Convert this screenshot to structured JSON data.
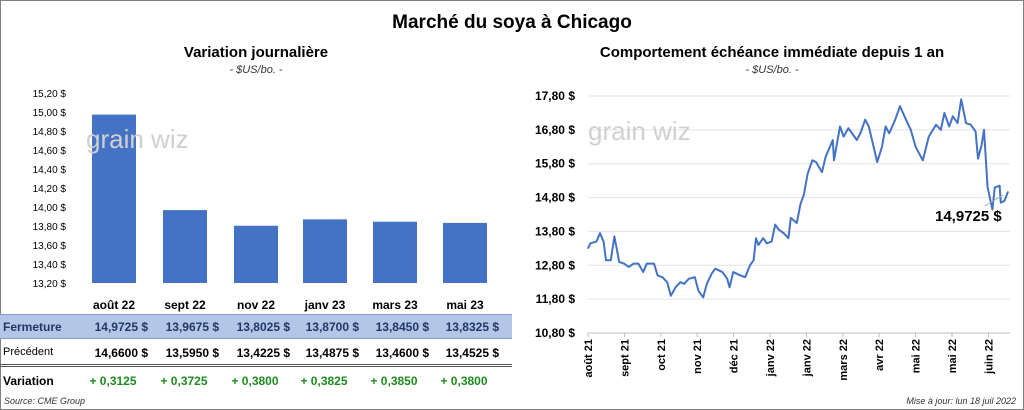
{
  "title": "Marché du soya à Chicago",
  "left": {
    "title": "Variation journalière",
    "subtitle": "- $US/bo. -",
    "table": {
      "columns": [
        "août 22",
        "sept 22",
        "nov 22",
        "janv 23",
        "mars 23",
        "mai 23"
      ],
      "rows": [
        {
          "label": "Fermeture",
          "values": [
            "14,9725  $",
            "13,9675  $",
            "13,8025  $",
            "13,8700  $",
            "13,8450  $",
            "13,8325  $"
          ]
        },
        {
          "label": "Précédent",
          "values": [
            "14,6600  $",
            "13,5950  $",
            "13,4225  $",
            "13,4875  $",
            "13,4600  $",
            "13,4525  $"
          ]
        },
        {
          "label": "Variation",
          "values": [
            "+ 0,3125",
            "+ 0,3725",
            "+ 0,3800",
            "+ 0,3825",
            "+ 0,3850",
            "+ 0,3800"
          ]
        }
      ]
    },
    "source": "Source: CME Group"
  },
  "right": {
    "title": "Comportement  échéance immédiate depuis 1 an",
    "subtitle": "- $US/bo. -",
    "last_label": "14,9725 $",
    "updated": "Mise à jour: lun 18 juil 2022"
  },
  "watermark": "grainwiz",
  "colors": {
    "bar": "#4472c4",
    "line": "#4472c4",
    "header_row": "#b4c6e7",
    "positive": "#1e8c1e"
  },
  "chart_data": [
    {
      "type": "bar",
      "categories": [
        "août 22",
        "sept 22",
        "nov 22",
        "janv 23",
        "mars 23",
        "mai 23"
      ],
      "values": [
        14.9725,
        13.9675,
        13.8025,
        13.87,
        13.845,
        13.8325
      ],
      "ylim": [
        13.2,
        15.2
      ],
      "yticks": [
        "13,20 $",
        "13,40 $",
        "13,60 $",
        "13,80 $",
        "14,00 $",
        "14,20 $",
        "14,40 $",
        "14,60 $",
        "14,80 $",
        "15,00 $",
        "15,20 $"
      ],
      "grid": false
    },
    {
      "type": "line",
      "ylim": [
        10.8,
        17.8
      ],
      "yticks": [
        "10,80 $",
        "11,80 $",
        "12,80 $",
        "13,80 $",
        "14,80 $",
        "15,80 $",
        "16,80 $",
        "17,80 $"
      ],
      "xticks": [
        "août 21",
        "sept 21",
        "oct 21",
        "nov 21",
        "déc 21",
        "janv 22",
        "janv 22",
        "mars 22",
        "avr 22",
        "mai 22",
        "mai 22",
        "juin 22"
      ],
      "grid": true,
      "points": [
        [
          "2021-08-02",
          13.3
        ],
        [
          "2021-08-04",
          13.45
        ],
        [
          "2021-08-09",
          13.5
        ],
        [
          "2021-08-12",
          13.75
        ],
        [
          "2021-08-15",
          13.5
        ],
        [
          "2021-08-17",
          12.95
        ],
        [
          "2021-08-21",
          12.95
        ],
        [
          "2021-08-24",
          13.65
        ],
        [
          "2021-08-28",
          12.9
        ],
        [
          "2021-09-01",
          12.85
        ],
        [
          "2021-09-05",
          12.75
        ],
        [
          "2021-09-09",
          12.85
        ],
        [
          "2021-09-13",
          12.85
        ],
        [
          "2021-09-17",
          12.6
        ],
        [
          "2021-09-20",
          12.85
        ],
        [
          "2021-09-26",
          12.85
        ],
        [
          "2021-09-29",
          12.5
        ],
        [
          "2021-10-03",
          12.45
        ],
        [
          "2021-10-07",
          12.3
        ],
        [
          "2021-10-10",
          11.9
        ],
        [
          "2021-10-14",
          12.15
        ],
        [
          "2021-10-18",
          12.3
        ],
        [
          "2021-10-21",
          12.25
        ],
        [
          "2021-10-25",
          12.4
        ],
        [
          "2021-10-30",
          12.45
        ],
        [
          "2021-11-02",
          12.05
        ],
        [
          "2021-11-06",
          11.85
        ],
        [
          "2021-11-09",
          12.25
        ],
        [
          "2021-11-13",
          12.55
        ],
        [
          "2021-11-16",
          12.7
        ],
        [
          "2021-11-22",
          12.6
        ],
        [
          "2021-11-26",
          12.4
        ],
        [
          "2021-11-28",
          12.15
        ],
        [
          "2021-12-01",
          12.6
        ],
        [
          "2021-12-07",
          12.5
        ],
        [
          "2021-12-11",
          12.45
        ],
        [
          "2021-12-15",
          12.8
        ],
        [
          "2021-12-18",
          12.95
        ],
        [
          "2021-12-20",
          13.6
        ],
        [
          "2021-12-22",
          13.4
        ],
        [
          "2021-12-26",
          13.6
        ],
        [
          "2021-12-29",
          13.45
        ],
        [
          "2022-01-02",
          13.5
        ],
        [
          "2022-01-05",
          14.0
        ],
        [
          "2022-01-08",
          13.85
        ],
        [
          "2022-01-12",
          13.75
        ],
        [
          "2022-01-16",
          13.6
        ],
        [
          "2022-01-18",
          14.2
        ],
        [
          "2022-01-23",
          14.05
        ],
        [
          "2022-01-26",
          14.6
        ],
        [
          "2022-01-29",
          14.9
        ],
        [
          "2022-02-01",
          15.5
        ],
        [
          "2022-02-05",
          15.9
        ],
        [
          "2022-02-08",
          15.85
        ],
        [
          "2022-02-13",
          15.55
        ],
        [
          "2022-02-16",
          16.0
        ],
        [
          "2022-02-22",
          16.5
        ],
        [
          "2022-02-23",
          15.9
        ],
        [
          "2022-02-28",
          16.9
        ],
        [
          "2022-03-03",
          16.6
        ],
        [
          "2022-03-07",
          16.85
        ],
        [
          "2022-03-14",
          16.5
        ],
        [
          "2022-03-17",
          16.7
        ],
        [
          "2022-03-21",
          17.1
        ],
        [
          "2022-03-24",
          16.9
        ],
        [
          "2022-03-28",
          16.3
        ],
        [
          "2022-03-31",
          15.85
        ],
        [
          "2022-04-04",
          16.3
        ],
        [
          "2022-04-07",
          16.9
        ],
        [
          "2022-04-10",
          16.7
        ],
        [
          "2022-04-15",
          17.1
        ],
        [
          "2022-04-19",
          17.5
        ],
        [
          "2022-04-24",
          17.1
        ],
        [
          "2022-04-28",
          16.8
        ],
        [
          "2022-05-02",
          16.3
        ],
        [
          "2022-05-08",
          15.9
        ],
        [
          "2022-05-13",
          16.6
        ],
        [
          "2022-05-19",
          16.95
        ],
        [
          "2022-05-23",
          16.8
        ],
        [
          "2022-05-26",
          17.3
        ],
        [
          "2022-05-30",
          16.9
        ],
        [
          "2022-06-02",
          17.2
        ],
        [
          "2022-06-06",
          17.0
        ],
        [
          "2022-06-09",
          17.7
        ],
        [
          "2022-06-13",
          17.0
        ],
        [
          "2022-06-17",
          16.95
        ],
        [
          "2022-06-21",
          16.75
        ],
        [
          "2022-06-23",
          15.95
        ],
        [
          "2022-06-26",
          16.35
        ],
        [
          "2022-06-28",
          16.8
        ],
        [
          "2022-07-01",
          15.1
        ],
        [
          "2022-07-05",
          14.45
        ],
        [
          "2022-07-07",
          15.1
        ],
        [
          "2022-07-11",
          15.15
        ],
        [
          "2022-07-12",
          14.65
        ],
        [
          "2022-07-15",
          14.7
        ],
        [
          "2022-07-18",
          14.9725
        ]
      ]
    }
  ]
}
